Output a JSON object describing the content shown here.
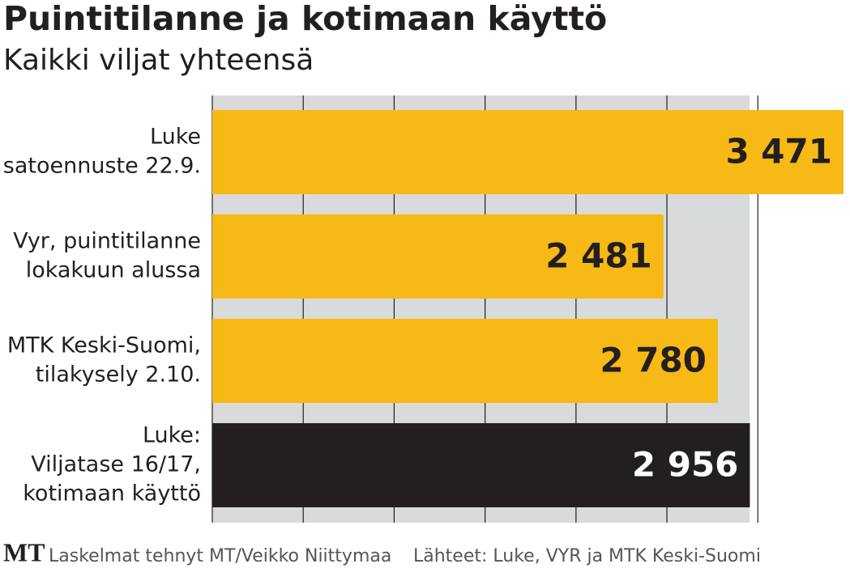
{
  "chart_data": {
    "type": "barh",
    "title": "Puintitilanne ja kotimaan käyttö",
    "subtitle": "Kaikki viljat yhteensä",
    "categories": [
      [
        "Luke",
        "satoennuste 22.9."
      ],
      [
        "Vyr, puintitilanne",
        "lokakuun alussa"
      ],
      [
        "MTK Keski-Suomi,",
        "tilakysely 2.10."
      ],
      [
        "Luke:",
        "Viljatase 16/17,",
        "kotimaan käyttö"
      ]
    ],
    "values": [
      3471,
      2481,
      2780,
      2956
    ],
    "value_labels": [
      "3 471",
      "2 481",
      "2 780",
      "2 956"
    ],
    "colors": [
      "#f7b916",
      "#f7b916",
      "#f7b916",
      "#231f20"
    ],
    "label_colors": [
      "#231f20",
      "#231f20",
      "#231f20",
      "#ffffff"
    ],
    "xlim": [
      0,
      3500
    ],
    "xticks": [
      0,
      500,
      1000,
      1500,
      2000,
      2500,
      3000
    ],
    "grid": true,
    "logo": "MT",
    "note": "Laskelmat tehnyt MT/Veikko Niittymaa",
    "source": "Lähteet: Luke, VYR ja MTK Keski-Suomi"
  }
}
